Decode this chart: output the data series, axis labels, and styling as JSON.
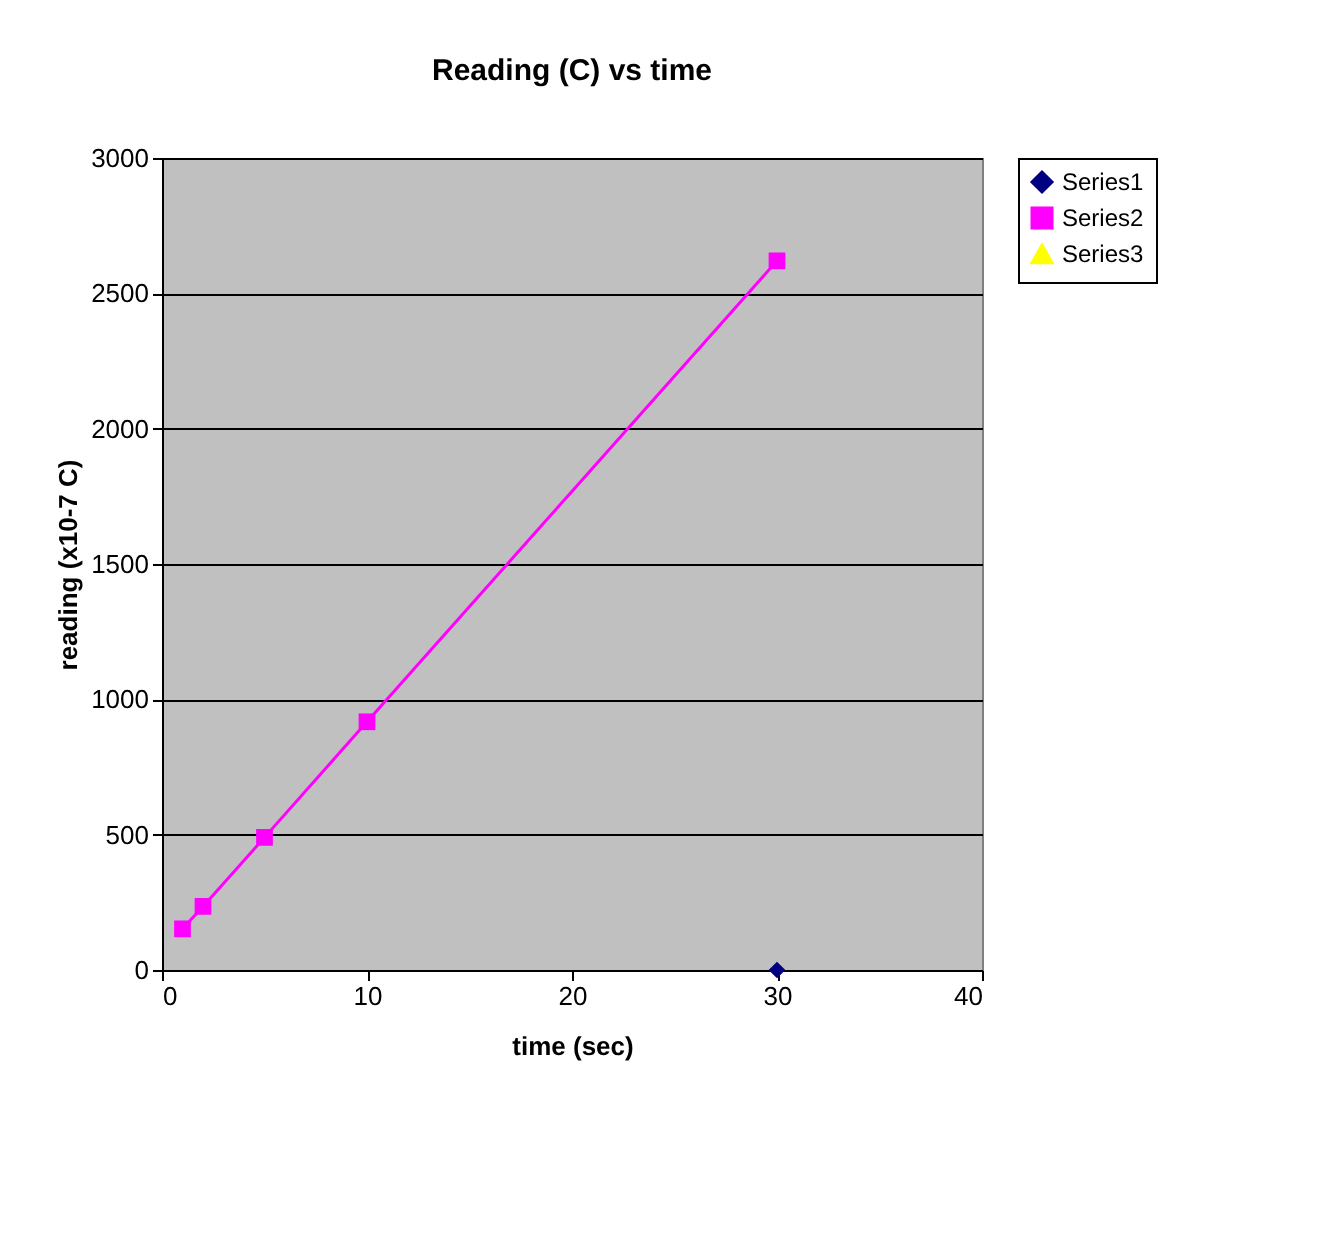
{
  "chart_data": {
    "type": "line",
    "title": "Reading (C) vs time",
    "xlabel": "time (sec)",
    "ylabel": "reading (x10-7 C)",
    "xlim": [
      0,
      40
    ],
    "xticks": [
      0,
      10,
      20,
      30,
      40
    ],
    "ylim": [
      0,
      3000
    ],
    "yticks": [
      0,
      500,
      1000,
      1500,
      2000,
      2500,
      3000
    ],
    "grid": "y",
    "legend": "right",
    "series": [
      {
        "name": "Series1",
        "color": "#000080",
        "marker": "diamond",
        "x": [
          30
        ],
        "values": [
          0
        ]
      },
      {
        "name": "Series2",
        "color": "#ff00ff",
        "marker": "square",
        "x": [
          1,
          2,
          5,
          10,
          30
        ],
        "values": [
          152,
          235,
          490,
          917,
          2620
        ]
      },
      {
        "name": "Series3",
        "color": "#ffff00",
        "marker": "triangle"
      }
    ]
  }
}
